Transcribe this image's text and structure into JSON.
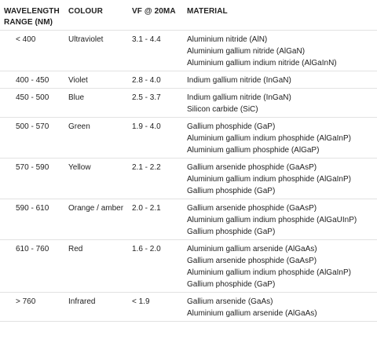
{
  "header": {
    "range": "Wavelength range (nm)",
    "colour": "Colour",
    "vf": "Vf @ 20mA",
    "material": "Material"
  },
  "rows": [
    {
      "range": "< 400",
      "colour": "Ultraviolet",
      "vf": "3.1 - 4.4",
      "materials": [
        "Aluminium nitride (AlN)",
        "Aluminium gallium nitride (AlGaN)",
        "Aluminium gallium indium nitride (AlGaInN)"
      ]
    },
    {
      "range": "400 - 450",
      "colour": "Violet",
      "vf": "2.8 - 4.0",
      "materials": [
        "Indium gallium nitride (InGaN)"
      ]
    },
    {
      "range": "450 - 500",
      "colour": "Blue",
      "vf": "2.5 - 3.7",
      "materials": [
        "Indium gallium nitride (InGaN)",
        "Silicon carbide (SiC)"
      ]
    },
    {
      "range": "500 - 570",
      "colour": "Green",
      "vf": "1.9 - 4.0",
      "materials": [
        "Gallium phosphide (GaP)",
        "Aluminium gallium indium phosphide (AlGaInP)",
        "Aluminium gallium phosphide (AlGaP)"
      ]
    },
    {
      "range": "570 - 590",
      "colour": "Yellow",
      "vf": "2.1 - 2.2",
      "materials": [
        "Gallium arsenide phosphide (GaAsP)",
        "Aluminium gallium indium phosphide (AlGaInP)",
        "Gallium phosphide (GaP)"
      ]
    },
    {
      "range": "590 - 610",
      "colour": "Orange / amber",
      "vf": "2.0 - 2.1",
      "materials": [
        "Gallium arsenide phosphide (GaAsP)",
        "Aluminium gallium indium phosphide (AlGaUInP)",
        "Gallium phosphide (GaP)"
      ]
    },
    {
      "range": "610 - 760",
      "colour": "Red",
      "vf": "1.6 - 2.0",
      "materials": [
        "Aluminium gallium arsenide (AlGaAs)",
        "Gallium arsenide phosphide (GaAsP)",
        "Aluminium gallium indium phosphide (AlGaInP)",
        "Gallium phosphide (GaP)"
      ]
    },
    {
      "range": "> 760",
      "colour": "Infrared",
      "vf": "< 1.9",
      "materials": [
        "Gallium arsenide (GaAs)",
        "Aluminium gallium arsenide (AlGaAs)"
      ]
    }
  ]
}
